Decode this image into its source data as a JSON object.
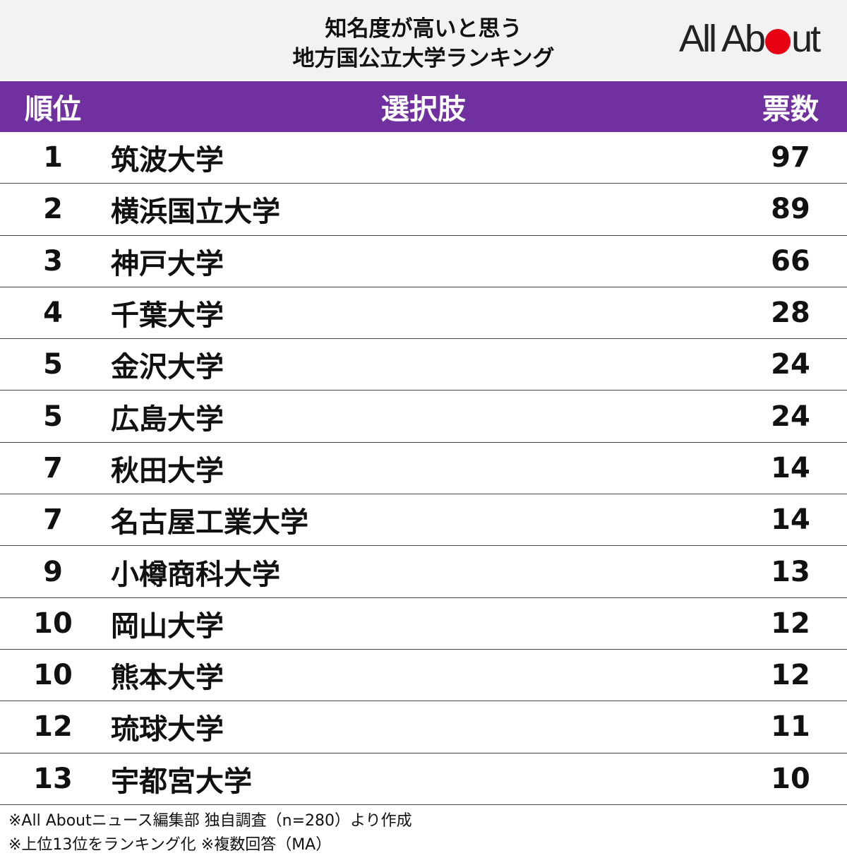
{
  "header": {
    "title_lines": [
      "知名度が高いと思う",
      "地方国公立大学ランキング"
    ],
    "logo": {
      "before": "All Ab",
      "after": "ut"
    }
  },
  "table": {
    "columns": [
      "順位",
      "選択肢",
      "票数"
    ],
    "rows": [
      [
        1,
        "筑波大学",
        97
      ],
      [
        2,
        "横浜国立大学",
        89
      ],
      [
        3,
        "神戸大学",
        66
      ],
      [
        4,
        "千葉大学",
        28
      ],
      [
        5,
        "金沢大学",
        24
      ],
      [
        5,
        "広島大学",
        24
      ],
      [
        7,
        "秋田大学",
        14
      ],
      [
        7,
        "名古屋工業大学",
        14
      ],
      [
        9,
        "小樽商科大学",
        13
      ],
      [
        10,
        "岡山大学",
        12
      ],
      [
        10,
        "熊本大学",
        12
      ],
      [
        12,
        "琉球大学",
        11
      ],
      [
        13,
        "宇都宮大学",
        10
      ]
    ]
  },
  "footer": {
    "notes": [
      "※All Aboutニュース編集部 独自調査（n=280）より作成",
      "※上位13位をランキング化 ※複数回答（MA）"
    ]
  }
}
